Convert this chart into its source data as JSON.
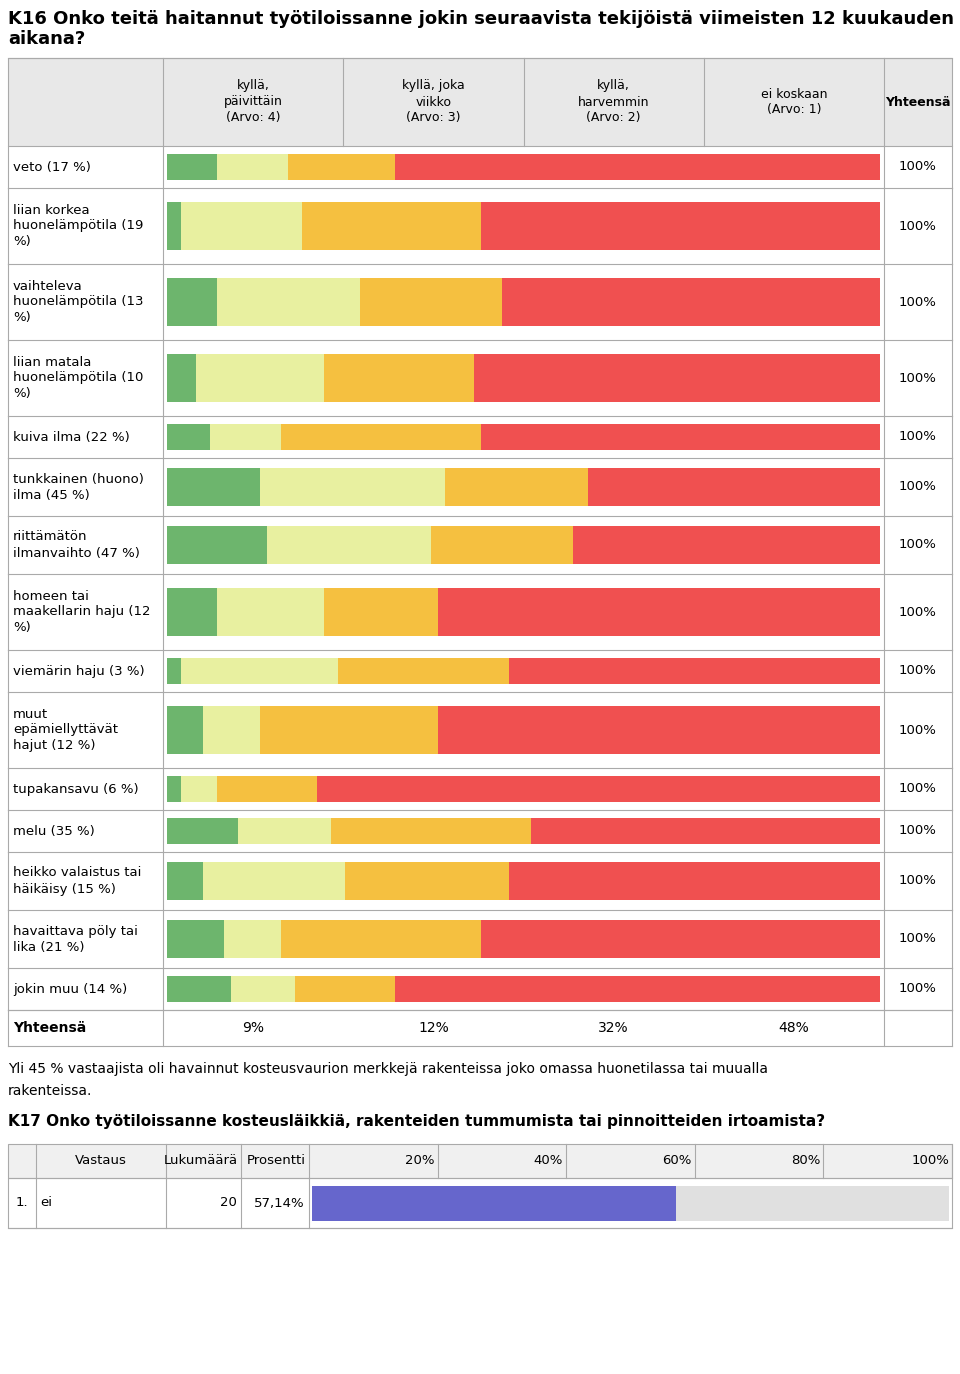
{
  "title_line1": "K16 Onko teitä haitannut työtiloissanne jokin seuraavista tekijöistä viimeisten 12 kuukauden",
  "title_line2": "aikana?",
  "col_headers": [
    "kyllä,\npäivittäin\n(Arvo: 4)",
    "kyllä, joka\nviikko\n(Arvo: 3)",
    "kyllä,\nharvemmin\n(Arvo: 2)",
    "ei koskaan\n(Arvo: 1)",
    "Yhteensä"
  ],
  "rows": [
    {
      "label": "veto (17 %)",
      "vals": [
        7,
        10,
        15,
        68
      ]
    },
    {
      "label": "liian korkea\nhuonelämpötila (19\n%)",
      "vals": [
        2,
        17,
        25,
        56
      ]
    },
    {
      "label": "vaihteleva\nhuonelämpötila (13\n%)",
      "vals": [
        7,
        20,
        20,
        53
      ]
    },
    {
      "label": "liian matala\nhuonelämpötila (10\n%)",
      "vals": [
        4,
        18,
        21,
        57
      ]
    },
    {
      "label": "kuiva ilma (22 %)",
      "vals": [
        6,
        10,
        28,
        56
      ]
    },
    {
      "label": "tunkkainen (huono)\nilma (45 %)",
      "vals": [
        13,
        26,
        20,
        41
      ]
    },
    {
      "label": "riittämätön\nilmanvaihto (47 %)",
      "vals": [
        14,
        23,
        20,
        43
      ]
    },
    {
      "label": "homeen tai\nmaakellarin haju (12\n%)",
      "vals": [
        7,
        15,
        16,
        62
      ]
    },
    {
      "label": "viemärin haju (3 %)",
      "vals": [
        2,
        22,
        24,
        52
      ]
    },
    {
      "label": "muut\nepämiellyttävät\nhajut (12 %)",
      "vals": [
        5,
        8,
        25,
        62
      ]
    },
    {
      "label": "tupakansavu (6 %)",
      "vals": [
        2,
        5,
        14,
        79
      ]
    },
    {
      "label": "melu (35 %)",
      "vals": [
        10,
        13,
        28,
        49
      ]
    },
    {
      "label": "heikko valaistus tai\nhäikäisy (15 %)",
      "vals": [
        5,
        20,
        23,
        52
      ]
    },
    {
      "label": "havaittava pöly tai\nlika (21 %)",
      "vals": [
        8,
        8,
        28,
        56
      ]
    },
    {
      "label": "jokin muu (14 %)",
      "vals": [
        9,
        9,
        14,
        68
      ]
    }
  ],
  "summary_label": "Yhteensä",
  "summary_vals": [
    "9%",
    "12%",
    "32%",
    "48%"
  ],
  "colors": [
    "#6db56d",
    "#e8f0a0",
    "#f5c040",
    "#f05050"
  ],
  "border_color": "#aaaaaa",
  "text_below_1": "Yli 45 % vastaajista oli havainnut kosteusvaurion merkkejä rakenteissa joko omassa huonetilassa tai muualla",
  "text_below_2": "rakenteissa.",
  "k17_title": "K17 Onko työtiloissanne kosteusläikkiä, rakenteiden tummumista tai pinnoitteiden irtoamista?",
  "k17_col_headers": [
    "Vastaus",
    "Lukumäärä",
    "Prosentti",
    "20%",
    "40%",
    "60%",
    "80%",
    "100%"
  ],
  "k17_row_num": "1.",
  "k17_row_answer": "ei",
  "k17_row_count": "20",
  "k17_row_pct": "57,14%",
  "k17_bar_pct": 57.14,
  "k17_bar_color": "#6666cc",
  "k17_bar_bg": "#e0e0e0"
}
